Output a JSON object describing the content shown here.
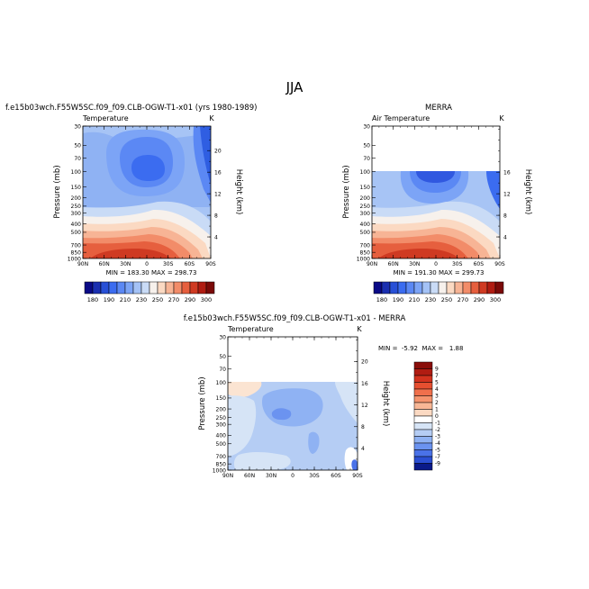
{
  "page": {
    "title": "JJA"
  },
  "chart_data": [
    {
      "type": "heatmap",
      "title": "f.e15b03wch.F55W5SC.f09_f09.CLB-OGW-T1-x01 (yrs 1980-1989)",
      "variable": "Temperature",
      "units": "K",
      "xlabel": "",
      "ylabel": "Pressure (mb)",
      "y2label": "Height (km)",
      "x_ticks": [
        "90N",
        "60N",
        "30N",
        "0",
        "30S",
        "60S",
        "90S"
      ],
      "y_ticks": [
        "30",
        "50",
        "70",
        "100",
        "150",
        "200",
        "250",
        "300",
        "400",
        "500",
        "700",
        "850",
        "1000"
      ],
      "y2_ticks": [
        "20",
        "16",
        "12",
        "8",
        "4"
      ],
      "y_log_scale": true,
      "stats": "MIN = 183.30  MAX = 298.73",
      "colorbar_labels": [
        "180",
        "190",
        "210",
        "230",
        "250",
        "270",
        "290",
        "300"
      ],
      "colorbar_levels": [
        180,
        185,
        190,
        200,
        210,
        220,
        230,
        240,
        250,
        260,
        270,
        280,
        290,
        295,
        300
      ],
      "colorbar_colors": [
        "#0a0a86",
        "#1a2fb0",
        "#2850d6",
        "#3b6cf0",
        "#5b88f4",
        "#7ca4f6",
        "#a4c2f6",
        "#c9dbf6",
        "#f7f1ec",
        "#fbd9c2",
        "#f7b495",
        "#f28c69",
        "#e65f3e",
        "#cf3a22",
        "#b01c12",
        "#7a0a08"
      ]
    },
    {
      "type": "heatmap",
      "title": "MERRA",
      "variable": "Air Temperature",
      "units": "K",
      "xlabel": "",
      "ylabel": "Pressure (mb)",
      "y2label": "Height (km)",
      "x_ticks": [
        "90N",
        "60N",
        "30N",
        "0",
        "30S",
        "60S",
        "90S"
      ],
      "y_ticks": [
        "30",
        "50",
        "70",
        "100",
        "150",
        "200",
        "250",
        "300",
        "400",
        "500",
        "700",
        "850",
        "1000"
      ],
      "y2_ticks": [
        "16",
        "12",
        "8",
        "4"
      ],
      "y_log_scale": true,
      "stats": "MIN = 191.30  MAX = 299.73",
      "colorbar_labels": [
        "180",
        "190",
        "210",
        "230",
        "250",
        "270",
        "290",
        "300"
      ]
    },
    {
      "type": "heatmap",
      "title": "f.e15b03wch.F55W5SC.f09_f09.CLB-OGW-T1-x01 - MERRA",
      "variable": "Temperature",
      "units": "K",
      "xlabel": "",
      "ylabel": "Pressure (mb)",
      "y2label": "Height (km)",
      "x_ticks": [
        "90N",
        "60N",
        "30N",
        "0",
        "30S",
        "60S",
        "90S"
      ],
      "y_ticks": [
        "30",
        "50",
        "70",
        "100",
        "150",
        "200",
        "250",
        "300",
        "400",
        "500",
        "700",
        "850",
        "1000"
      ],
      "y2_ticks": [
        "20",
        "16",
        "12",
        "8",
        "4"
      ],
      "y_log_scale": true,
      "stats": "MIN =  -5.92  MAX =   1.88",
      "colorbar_labels": [
        "9",
        "7",
        "5",
        "4",
        "3",
        "2",
        "1",
        "0",
        "-1",
        "-2",
        "-3",
        "-4",
        "-5",
        "-7",
        "-9"
      ],
      "colorbar_colors": [
        "#8a0e0a",
        "#b01c12",
        "#d2321e",
        "#e64f30",
        "#f0704c",
        "#f5946e",
        "#f8b796",
        "#fbd9c2",
        "#ffffff",
        "#d6e4f6",
        "#b5cdf4",
        "#8fb2f3",
        "#6b93f0",
        "#4a72e8",
        "#2b4fd3",
        "#0a1a8a"
      ]
    }
  ]
}
